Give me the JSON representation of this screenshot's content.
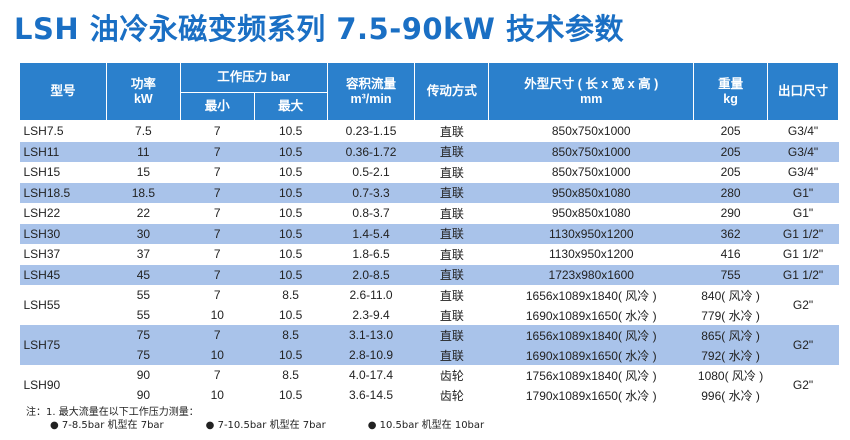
{
  "title": "LSH 油冷永磁变频系列 7.5-90kW 技术参数",
  "header": {
    "model": "型号",
    "power": "功率",
    "power_unit": "kW",
    "pressure": "工作压力 bar",
    "min": "最小",
    "max": "最大",
    "flow": "容积流量",
    "flow_unit": "m³/min",
    "drive": "传动方式",
    "dims": "外型尺寸 ( 长 x 宽 x 高 )",
    "dims_unit": "mm",
    "weight": "重量",
    "weight_unit": "kg",
    "outlet": "出口尺寸"
  },
  "rows": [
    {
      "model": "LSH7.5",
      "power": "7.5",
      "min": "7",
      "max": "10.5",
      "flow": "0.23-1.15",
      "drive": "直联",
      "dims": "850x750x1000",
      "weight": "205",
      "outlet": "G3/4\"",
      "shaded": false
    },
    {
      "model": "LSH11",
      "power": "11",
      "min": "7",
      "max": "10.5",
      "flow": "0.36-1.72",
      "drive": "直联",
      "dims": "850x750x1000",
      "weight": "205",
      "outlet": "G3/4\"",
      "shaded": true
    },
    {
      "model": "LSH15",
      "power": "15",
      "min": "7",
      "max": "10.5",
      "flow": "0.5-2.1",
      "drive": "直联",
      "dims": "850x750x1000",
      "weight": "205",
      "outlet": "G3/4\"",
      "shaded": false
    },
    {
      "model": "LSH18.5",
      "power": "18.5",
      "min": "7",
      "max": "10.5",
      "flow": "0.7-3.3",
      "drive": "直联",
      "dims": "950x850x1080",
      "weight": "280",
      "outlet": "G1\"",
      "shaded": true
    },
    {
      "model": "LSH22",
      "power": "22",
      "min": "7",
      "max": "10.5",
      "flow": "0.8-3.7",
      "drive": "直联",
      "dims": "950x850x1080",
      "weight": "290",
      "outlet": "G1\"",
      "shaded": false
    },
    {
      "model": "LSH30",
      "power": "30",
      "min": "7",
      "max": "10.5",
      "flow": "1.4-5.4",
      "drive": "直联",
      "dims": "1130x950x1200",
      "weight": "362",
      "outlet": "G1 1/2\"",
      "shaded": true
    },
    {
      "model": "LSH37",
      "power": "37",
      "min": "7",
      "max": "10.5",
      "flow": "1.8-6.5",
      "drive": "直联",
      "dims": "1130x950x1200",
      "weight": "416",
      "outlet": "G1 1/2\"",
      "shaded": false
    },
    {
      "model": "LSH45",
      "power": "45",
      "min": "7",
      "max": "10.5",
      "flow": "2.0-8.5",
      "drive": "直联",
      "dims": "1723x980x1600",
      "weight": "755",
      "outlet": "G1 1/2\"",
      "shaded": true
    }
  ],
  "double_rows": [
    {
      "model": "LSH55",
      "outlet": "G2\"",
      "shaded": false,
      "sub": [
        {
          "power": "55",
          "min": "7",
          "max": "8.5",
          "flow": "2.6-11.0",
          "drive": "直联",
          "dims": "1656x1089x1840( 风冷 )",
          "weight": "840( 风冷 )"
        },
        {
          "power": "55",
          "min": "10",
          "max": "10.5",
          "flow": "2.3-9.4",
          "drive": "直联",
          "dims": "1690x1089x1650( 水冷 )",
          "weight": "779( 水冷 )"
        }
      ]
    },
    {
      "model": "LSH75",
      "outlet": "G2\"",
      "shaded": true,
      "sub": [
        {
          "power": "75",
          "min": "7",
          "max": "8.5",
          "flow": "3.1-13.0",
          "drive": "直联",
          "dims": "1656x1089x1840( 风冷 )",
          "weight": "865( 风冷 )"
        },
        {
          "power": "75",
          "min": "10",
          "max": "10.5",
          "flow": "2.8-10.9",
          "drive": "直联",
          "dims": "1690x1089x1650( 水冷 )",
          "weight": "792( 水冷 )"
        }
      ]
    },
    {
      "model": "LSH90",
      "outlet": "G2\"",
      "shaded": false,
      "sub": [
        {
          "power": "90",
          "min": "7",
          "max": "8.5",
          "flow": "4.0-17.4",
          "drive": "齿轮",
          "dims": "1756x1089x1840( 风冷 )",
          "weight": "1080( 风冷 )"
        },
        {
          "power": "90",
          "min": "10",
          "max": "10.5",
          "flow": "3.6-14.5",
          "drive": "齿轮",
          "dims": "1790x1089x1650( 水冷 )",
          "weight": "996( 水冷 )"
        }
      ]
    }
  ],
  "note": {
    "line1": "注：1. 最大流量在以下工作压力测量：",
    "bullets": [
      "● 7-8.5bar 机型在 7bar",
      "● 7-10.5bar 机型在 7bar",
      "● 10.5bar 机型在 10bar"
    ]
  }
}
